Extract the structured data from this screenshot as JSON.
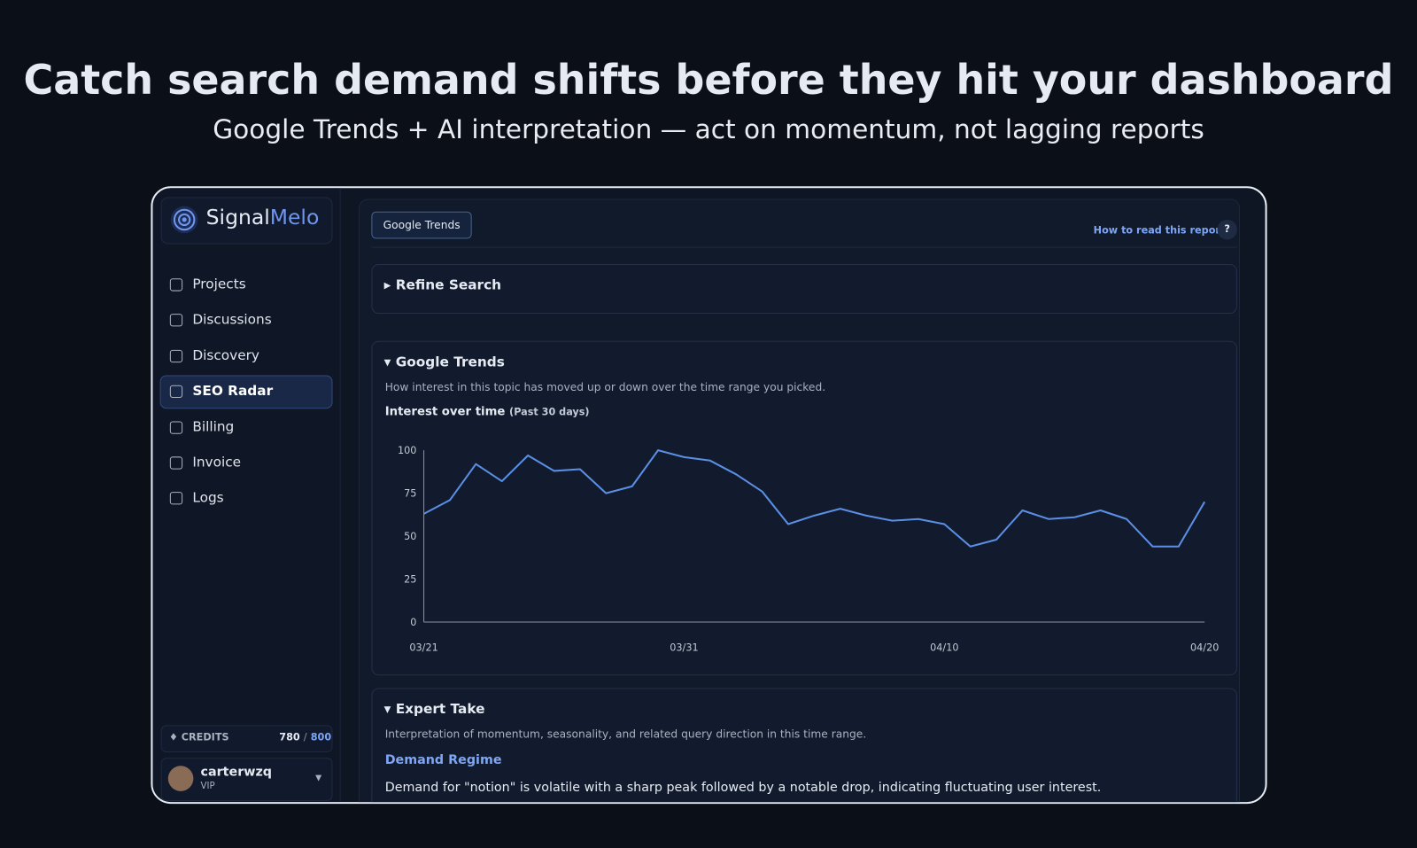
{
  "header": {
    "title": "Catch search demand shifts before they hit your dashboard",
    "subtitle": "Google Trends + AI interpretation — act on momentum, not lagging reports"
  },
  "sidebar": {
    "brand_a": "Signal",
    "brand_b": "Melo",
    "nav": [
      "Projects",
      "Discussions",
      "Discovery",
      "SEO Radar",
      "Billing",
      "Invoice",
      "Logs"
    ],
    "active": 3,
    "credits": {
      "label": "CREDITS",
      "used": 780,
      "separator": "/",
      "total": 800
    },
    "user": {
      "name": "carterwzq",
      "tier": "VIP"
    }
  },
  "main": {
    "tab": "Google Trends",
    "help_link": "How to read this report",
    "help_icon": "?",
    "refine": "Refine Search",
    "trends": {
      "title": "Google Trends",
      "description": "How interest in this topic has moved up or down over the time range you picked."
    },
    "expert": {
      "title": "Expert Take",
      "description": "Interpretation of momentum, seasonality, and related query direction in this time range.",
      "heading": "Demand Regime",
      "text": "Demand for \"notion\" is volatile with a sharp peak followed by a notable drop, indicating fluctuating user interest."
    }
  },
  "chart_data": {
    "type": "line",
    "title": "Interest over time",
    "subtitle": "(Past 30 days)",
    "categories": [
      "03/21",
      null,
      null,
      null,
      null,
      null,
      null,
      null,
      null,
      null,
      "03/31",
      null,
      null,
      null,
      null,
      null,
      null,
      null,
      null,
      null,
      "04/10",
      null,
      null,
      null,
      null,
      null,
      null,
      null,
      null,
      null,
      "04/20"
    ],
    "series": [
      {
        "name": "Interest",
        "color": "#5b8fe6",
        "values": [
          63,
          71,
          92,
          82,
          97,
          88,
          89,
          75,
          79,
          100,
          96,
          94,
          86,
          76,
          57,
          62,
          66,
          62,
          59,
          60,
          57,
          44,
          48,
          65,
          60,
          61,
          65,
          60,
          44,
          44,
          70
        ]
      }
    ],
    "ylim": [
      0,
      100
    ],
    "yticks": [
      0,
      25,
      50,
      75,
      100
    ],
    "grid": false
  }
}
